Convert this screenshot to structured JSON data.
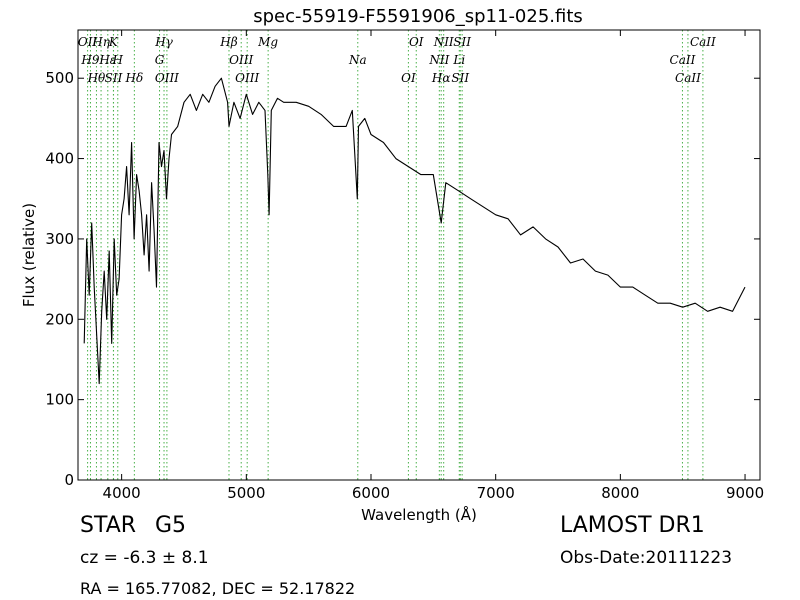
{
  "chart_data": {
    "type": "line",
    "title": "spec-55919-F5591906_sp11-025.fits",
    "xlabel": "Wavelength (Å)",
    "ylabel": "Flux (relative)",
    "xlim": [
      3650,
      9120
    ],
    "ylim": [
      0,
      560
    ],
    "xticks": [
      4000,
      5000,
      6000,
      7000,
      8000,
      9000
    ],
    "yticks": [
      0,
      100,
      200,
      300,
      400,
      500
    ],
    "grid": false,
    "series": [
      {
        "color": "#000000",
        "x": [
          3700,
          3720,
          3740,
          3760,
          3780,
          3800,
          3820,
          3840,
          3860,
          3880,
          3900,
          3920,
          3940,
          3960,
          3980,
          4000,
          4020,
          4040,
          4060,
          4080,
          4100,
          4120,
          4140,
          4160,
          4180,
          4200,
          4220,
          4240,
          4260,
          4280,
          4300,
          4320,
          4340,
          4360,
          4380,
          4400,
          4450,
          4500,
          4550,
          4600,
          4650,
          4700,
          4750,
          4800,
          4850,
          4861,
          4900,
          4950,
          5000,
          5050,
          5100,
          5150,
          5172,
          5183,
          5200,
          5250,
          5300,
          5400,
          5500,
          5600,
          5700,
          5800,
          5850,
          5890,
          5900,
          5950,
          6000,
          6100,
          6200,
          6300,
          6400,
          6500,
          6563,
          6600,
          6700,
          6800,
          6900,
          7000,
          7100,
          7200,
          7300,
          7400,
          7500,
          7600,
          7700,
          7800,
          7900,
          8000,
          8100,
          8200,
          8300,
          8400,
          8500,
          8600,
          8700,
          8800,
          8900,
          9000
        ],
        "y": [
          170,
          300,
          230,
          320,
          240,
          180,
          120,
          210,
          260,
          200,
          285,
          170,
          300,
          230,
          250,
          330,
          350,
          390,
          330,
          420,
          300,
          380,
          360,
          330,
          280,
          330,
          260,
          370,
          310,
          240,
          420,
          390,
          410,
          350,
          400,
          430,
          440,
          470,
          480,
          460,
          480,
          470,
          490,
          500,
          470,
          440,
          470,
          450,
          480,
          455,
          470,
          460,
          380,
          330,
          460,
          475,
          470,
          470,
          465,
          455,
          440,
          440,
          460,
          350,
          440,
          450,
          430,
          420,
          400,
          390,
          380,
          380,
          320,
          370,
          360,
          350,
          340,
          330,
          325,
          305,
          315,
          300,
          290,
          270,
          275,
          260,
          255,
          240,
          240,
          230,
          220,
          220,
          215,
          220,
          210,
          215,
          210,
          240
        ]
      }
    ],
    "lines": [
      {
        "label": "OII",
        "x": 3727
      },
      {
        "label": "H9",
        "x": 3750
      },
      {
        "label": "Hθ",
        "x": 3798
      },
      {
        "label": "Hη",
        "x": 3835
      },
      {
        "label": "Hε",
        "x": 3889
      },
      {
        "label": "SII",
        "x": 3935
      },
      {
        "label": "K",
        "x": 3934
      },
      {
        "label": "H",
        "x": 3969
      },
      {
        "label": "Hδ",
        "x": 4102
      },
      {
        "label": "Hγ",
        "x": 4340
      },
      {
        "label": "G",
        "x": 4304
      },
      {
        "label": "OIII",
        "x": 4363
      },
      {
        "label": "Hβ",
        "x": 4861
      },
      {
        "label": "OIII",
        "x": 4959
      },
      {
        "label": "OIII",
        "x": 5007
      },
      {
        "label": "Mg",
        "x": 5175
      },
      {
        "label": "Na",
        "x": 5894
      },
      {
        "label": "OI",
        "x": 6300
      },
      {
        "label": "OI",
        "x": 6363
      },
      {
        "label": "NII",
        "x": 6548
      },
      {
        "label": "Hα",
        "x": 6563
      },
      {
        "label": "NII",
        "x": 6583
      },
      {
        "label": "Li",
        "x": 6708
      },
      {
        "label": "SII",
        "x": 6716
      },
      {
        "label": "SII",
        "x": 6731
      },
      {
        "label": "CaII",
        "x": 8498
      },
      {
        "label": "CaII",
        "x": 8542
      },
      {
        "label": "CaII",
        "x": 8662
      }
    ]
  },
  "info": {
    "class_label": "STAR",
    "subclass_label": "G5",
    "survey": "LAMOST DR1",
    "cz": "cz = -6.3 ± 8.1",
    "obs_date": "Obs-Date:20111223",
    "coords": "RA = 165.77082, DEC = 52.17822"
  }
}
